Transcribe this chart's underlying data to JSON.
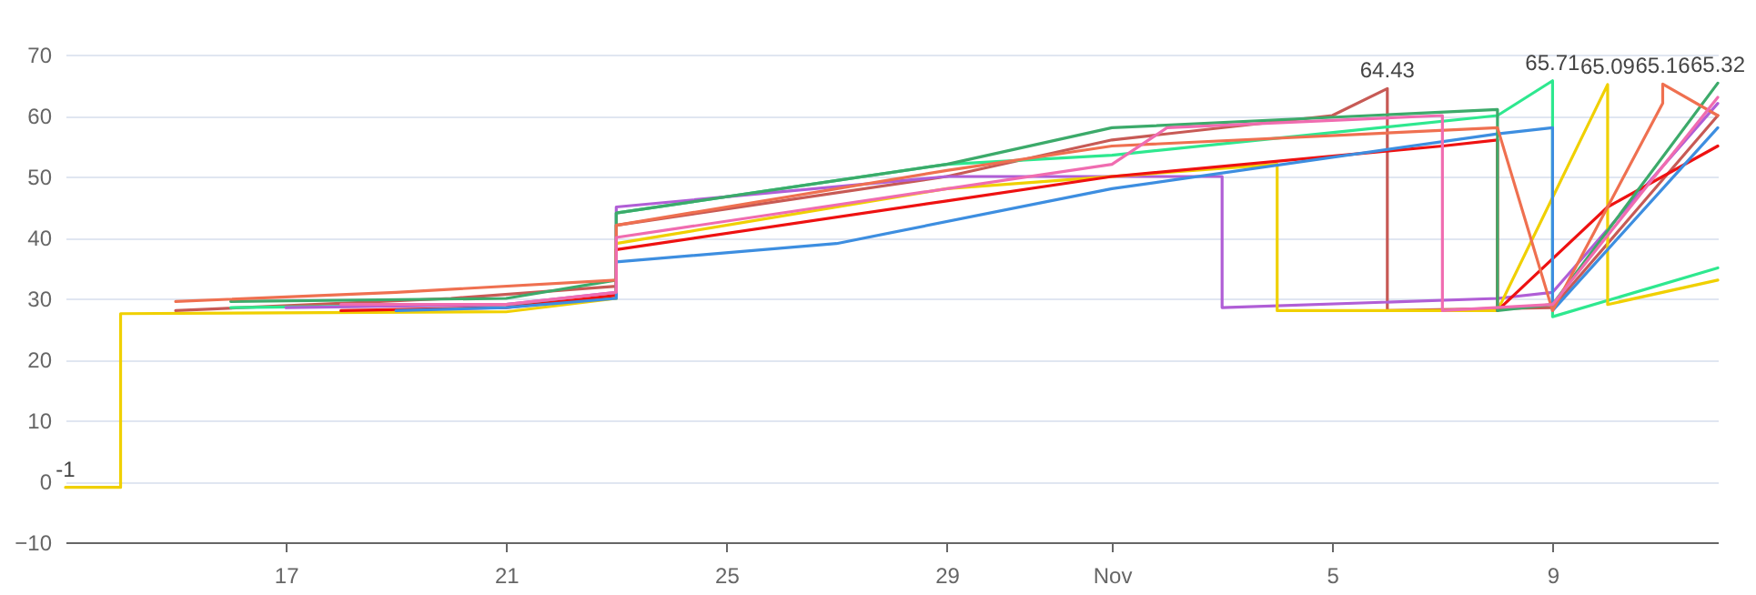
{
  "chart_data": {
    "type": "line",
    "xlim": [
      "--10-13",
      "--11-12"
    ],
    "ylim": [
      -10,
      70
    ],
    "xticks": [
      {
        "value": "--10-17",
        "label": "17"
      },
      {
        "value": "--10-21",
        "label": "21"
      },
      {
        "value": "--10-25",
        "label": "25"
      },
      {
        "value": "--10-29",
        "label": "29"
      },
      {
        "value": "--11-01",
        "label": "Nov"
      },
      {
        "value": "--11-05",
        "label": "5"
      },
      {
        "value": "--11-09",
        "label": "9"
      }
    ],
    "yticks": [
      -10,
      0,
      10,
      20,
      30,
      40,
      50,
      60,
      70
    ],
    "grid": "y",
    "legend": false,
    "marker": "none",
    "line_style": "solid",
    "annotations": [
      {
        "text": "-1",
        "x": "--10-13",
        "y": -1
      },
      {
        "text": "64.43",
        "x": "--11-06",
        "y": 64.43
      },
      {
        "text": "65.71",
        "x": "--11-09",
        "y": 65.71
      },
      {
        "text": "65.09",
        "x": "--11-10",
        "y": 65.09
      },
      {
        "text": "65.16",
        "x": "--11-11",
        "y": 65.16
      },
      {
        "text": "65.32",
        "x": "--11-12",
        "y": 65.32
      }
    ],
    "series": [
      {
        "color": "#c75a55",
        "x": [
          "--10-15",
          "--10-20",
          "--10-23",
          "--10-23",
          "--10-29",
          "--11-01",
          "--11-05",
          "--11-06",
          "--11-06",
          "--11-09",
          "--11-12"
        ],
        "values": [
          28,
          30,
          32,
          42,
          50,
          56,
          60,
          64.43,
          28,
          28.5,
          60
        ]
      },
      {
        "color": "#2ee88f",
        "x": [
          "--10-16",
          "--10-21",
          "--10-23",
          "--10-23",
          "--10-29",
          "--11-01",
          "--11-08",
          "--11-09",
          "--11-09",
          "--11-12"
        ],
        "values": [
          28.5,
          29,
          30,
          44,
          52,
          53.5,
          60,
          65.71,
          27,
          35
        ]
      },
      {
        "color": "#b05ed6",
        "x": [
          "--10-17",
          "--10-21",
          "--10-23",
          "--10-23",
          "--10-29",
          "--11-03",
          "--11-03",
          "--11-08",
          "--11-09",
          "--11-12"
        ],
        "values": [
          28.5,
          29,
          31,
          45,
          50,
          50,
          28.5,
          30,
          31,
          62
        ]
      },
      {
        "color": "#f0d000",
        "x": [
          "--10-13",
          "--10-14",
          "--10-14",
          "--10-21",
          "--10-23",
          "--10-23",
          "--10-29",
          "--11-04",
          "--11-04",
          "--11-08",
          "--11-10",
          "--11-10",
          "--11-12"
        ],
        "values": [
          -1,
          -1,
          27.5,
          27.8,
          30,
          39,
          48,
          52,
          28,
          28,
          65.09,
          29,
          33
        ]
      },
      {
        "color": "#ee1111",
        "x": [
          "--10-18",
          "--10-21",
          "--10-23",
          "--10-23",
          "--10-29",
          "--11-01",
          "--11-07",
          "--11-08",
          "--11-08",
          "--11-10",
          "--11-12"
        ],
        "values": [
          28,
          28.5,
          30.5,
          38,
          46,
          50,
          55,
          56,
          28,
          45,
          55
        ]
      },
      {
        "color": "#3d8ee0",
        "x": [
          "--10-19",
          "--10-21",
          "--10-23",
          "--10-23",
          "--10-27",
          "--11-01",
          "--11-08",
          "--11-09",
          "--11-09",
          "--11-12"
        ],
        "values": [
          28,
          28.5,
          30,
          36,
          39,
          48,
          57,
          58,
          28,
          58
        ]
      },
      {
        "color": "#3caa6a",
        "x": [
          "--10-16",
          "--10-21",
          "--10-23",
          "--10-23",
          "--10-29",
          "--11-01",
          "--11-08",
          "--11-08",
          "--11-09",
          "--11-12"
        ],
        "values": [
          29.5,
          30,
          33,
          44,
          52,
          58,
          61,
          28,
          29,
          65.32
        ]
      },
      {
        "color": "#ef7050",
        "x": [
          "--10-15",
          "--10-19",
          "--10-23",
          "--10-23",
          "--10-29",
          "--11-01",
          "--11-08",
          "--11-09",
          "--11-11",
          "--11-11",
          "--11-12"
        ],
        "values": [
          29.5,
          31,
          33,
          42,
          51,
          55,
          58,
          28,
          62,
          65.16,
          60
        ]
      },
      {
        "color": "#f06cb0",
        "x": [
          "--10-18",
          "--10-21",
          "--10-23",
          "--10-23",
          "--11-01",
          "--11-02",
          "--11-07",
          "--11-07",
          "--11-09",
          "--11-12"
        ],
        "values": [
          29,
          29,
          31,
          40,
          52,
          58,
          60,
          28,
          29,
          63
        ]
      }
    ]
  }
}
